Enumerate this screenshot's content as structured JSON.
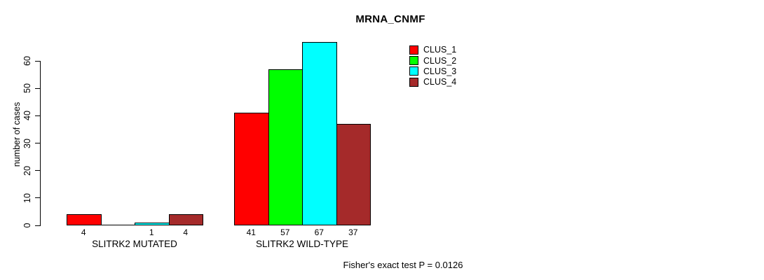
{
  "chart_data": {
    "type": "bar",
    "title": "MRNA_CNMF",
    "xlabel": "",
    "ylabel": "number of cases",
    "ylim": [
      0,
      67
    ],
    "yticks": [
      0,
      10,
      20,
      30,
      40,
      50,
      60
    ],
    "grid": false,
    "legend_position": "top-right",
    "categories": [
      "SLITRK2 MUTATED",
      "SLITRK2 WILD-TYPE"
    ],
    "series": [
      {
        "name": "CLUS_1",
        "color": "#ff0000",
        "values": [
          4,
          41
        ]
      },
      {
        "name": "CLUS_2",
        "color": "#00ff00",
        "values": [
          0,
          57
        ]
      },
      {
        "name": "CLUS_3",
        "color": "#00ffff",
        "values": [
          1,
          67
        ]
      },
      {
        "name": "CLUS_4",
        "color": "#a52a2a",
        "values": [
          4,
          37
        ]
      }
    ],
    "bar_value_labels": [
      [
        "4",
        "",
        "1",
        "4"
      ],
      [
        "41",
        "57",
        "67",
        "37"
      ]
    ],
    "annotation": "Fisher's exact test P = 0.0126"
  }
}
